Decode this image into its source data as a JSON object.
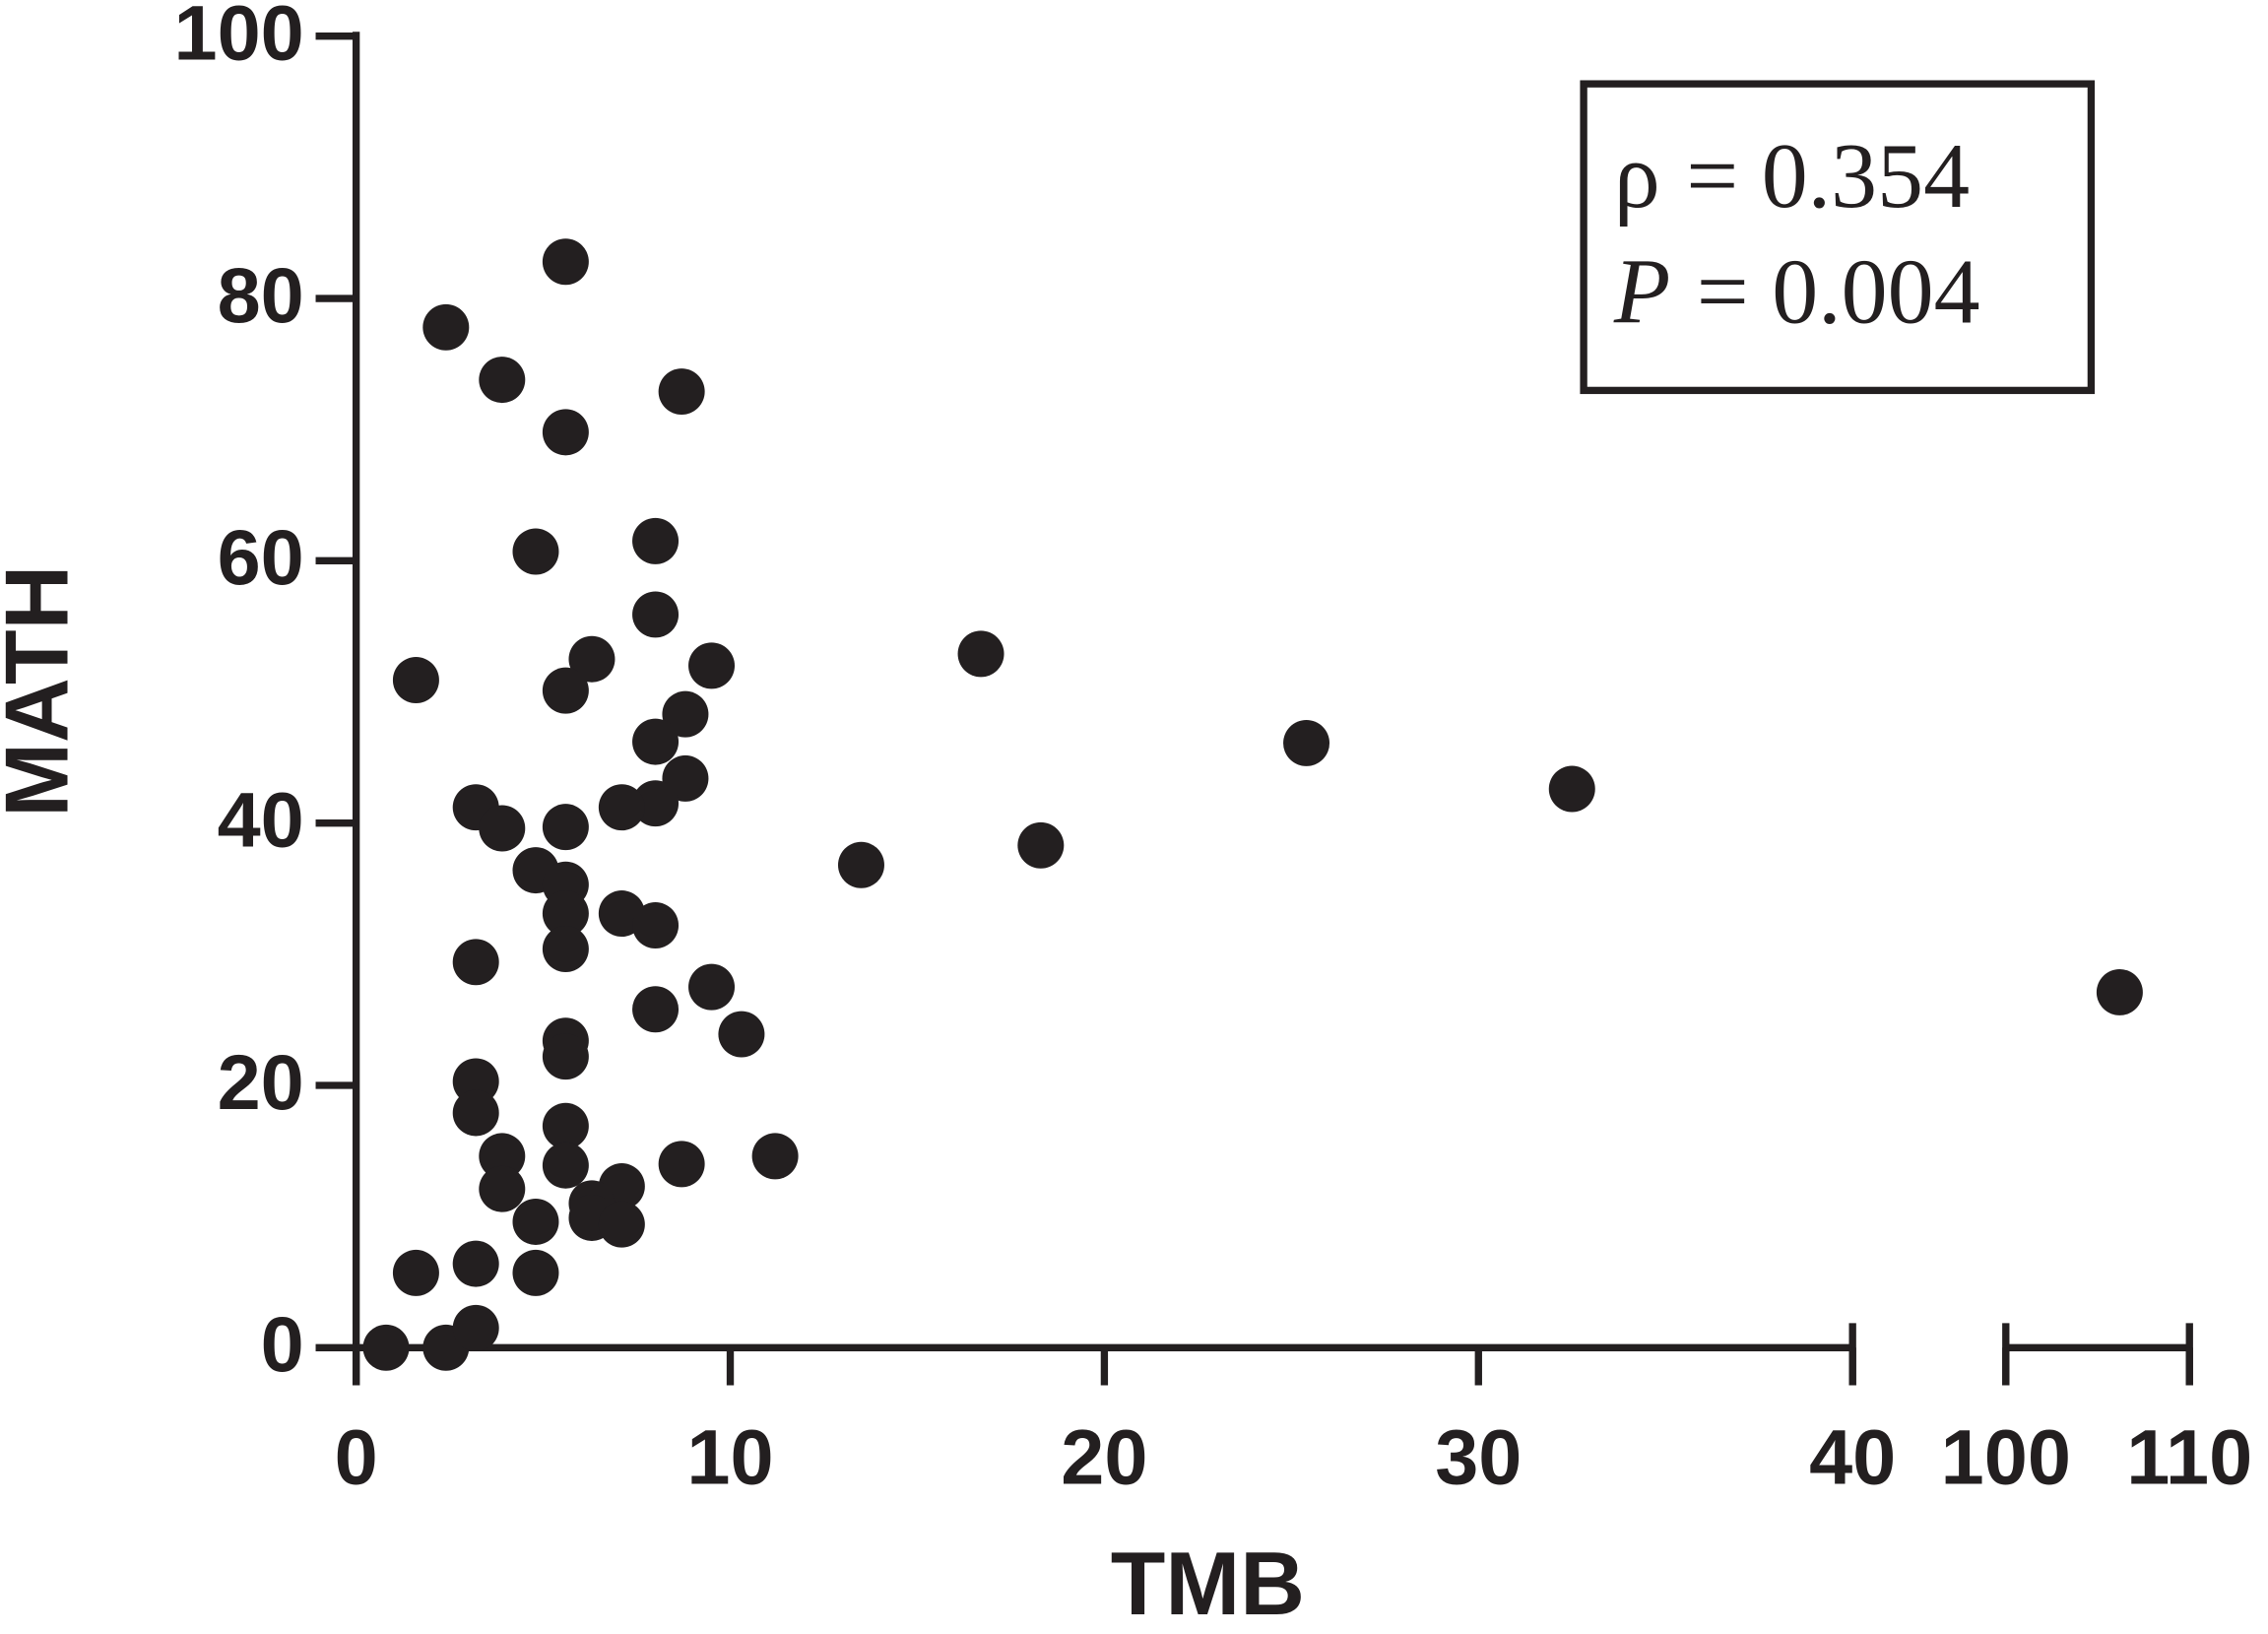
{
  "chart_data": {
    "type": "scatter",
    "x_label": "TMB",
    "y_label": "MATH",
    "color": "#231f20",
    "x_segments": [
      {
        "xlim": [
          0,
          40
        ],
        "xticks": [
          0,
          10,
          20,
          30,
          40
        ]
      },
      {
        "xlim": [
          100,
          110
        ],
        "xticks": [
          100,
          110
        ]
      }
    ],
    "ylim": [
      0,
      100
    ],
    "yticks": [
      0,
      20,
      40,
      60,
      80,
      100
    ],
    "annotations": [
      {
        "symbol": "ρ",
        "text": "= 0.354"
      },
      {
        "symbol": "P",
        "text": "= 0.004"
      }
    ],
    "x": [
      0.8,
      2.4,
      3.2,
      1.6,
      3.2,
      4.8,
      1.6,
      2.4,
      5.6,
      3.9,
      5.6,
      8.7,
      4.8,
      8.0,
      8.0,
      6.3,
      5.6,
      9.5,
      16.7,
      25.4,
      32.5,
      106.2,
      8.8,
      8.0,
      8.8,
      8.0,
      7.1,
      3.2,
      3.9,
      5.6,
      18.3,
      13.5,
      4.8,
      5.6,
      5.6,
      7.1,
      8.0,
      5.6,
      3.2,
      9.5,
      8.0,
      10.3,
      5.6,
      5.6,
      3.2,
      3.2,
      5.6,
      11.2,
      8.7,
      5.6,
      3.9,
      3.9,
      7.1,
      6.3,
      6.3,
      7.1,
      4.8
    ],
    "values": [
      0,
      0,
      1.5,
      5.7,
      6.4,
      5.7,
      50.9,
      77.8,
      82.8,
      73.8,
      69.8,
      72.9,
      60.7,
      61.5,
      55.9,
      52.5,
      50.1,
      52.0,
      52.9,
      46.1,
      42.6,
      27.1,
      48.3,
      46.2,
      43.4,
      41.5,
      41.2,
      41.2,
      39.6,
      39.7,
      38.3,
      36.8,
      36.4,
      35.3,
      33.1,
      33.1,
      32.2,
      30.4,
      29.4,
      27.5,
      25.8,
      23.9,
      23.4,
      22.2,
      20.3,
      17.9,
      16.9,
      14.6,
      14.0,
      13.9,
      14.6,
      12.1,
      12.3,
      11.0,
      9.9,
      9.4,
      9.6
    ]
  }
}
